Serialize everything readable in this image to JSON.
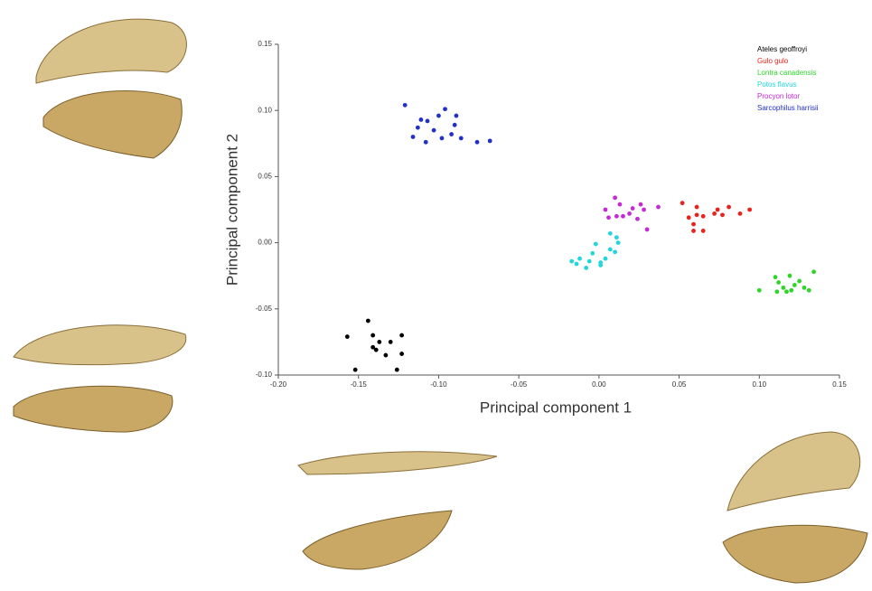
{
  "chart_data": {
    "type": "scatter",
    "x_label": "Principal component 1",
    "y_label": "Principal component 2",
    "xlim": [
      -0.2,
      0.15
    ],
    "ylim": [
      -0.1,
      0.15
    ],
    "xticks": [
      {
        "value": -0.2,
        "label": "-0.20"
      },
      {
        "value": -0.15,
        "label": "-0.15"
      },
      {
        "value": -0.1,
        "label": "-0.10"
      },
      {
        "value": -0.05,
        "label": "-0.05"
      },
      {
        "value": 0,
        "label": "0.00"
      },
      {
        "value": 0.05,
        "label": "0.05"
      },
      {
        "value": 0.1,
        "label": "0.10"
      },
      {
        "value": 0.15,
        "label": "0.15"
      }
    ],
    "yticks": [
      {
        "value": -0.1,
        "label": "-0.10"
      },
      {
        "value": -0.05,
        "label": "-0.05"
      },
      {
        "value": 0,
        "label": "0.00"
      },
      {
        "value": 0.05,
        "label": "0.05"
      },
      {
        "value": 0.1,
        "label": "0.10"
      },
      {
        "value": 0.15,
        "label": "0.15"
      }
    ],
    "legend": "top-right",
    "series": [
      {
        "name": "Ateles geoffroyi",
        "color": "#000000",
        "x": [
          -0.157,
          -0.144,
          -0.141,
          -0.141,
          -0.139,
          -0.137,
          -0.133,
          -0.13,
          -0.123,
          -0.123,
          -0.126,
          -0.152
        ],
        "y": [
          -0.071,
          -0.059,
          -0.07,
          -0.079,
          -0.081,
          -0.075,
          -0.085,
          -0.075,
          -0.07,
          -0.084,
          -0.096,
          -0.096
        ]
      },
      {
        "name": "Gulo gulo",
        "color": "#e8231e",
        "x": [
          0.052,
          0.061,
          0.061,
          0.056,
          0.059,
          0.065,
          0.072,
          0.074,
          0.081,
          0.077,
          0.088,
          0.094,
          0.065,
          0.059
        ],
        "y": [
          0.03,
          0.027,
          0.021,
          0.019,
          0.014,
          0.02,
          0.022,
          0.025,
          0.027,
          0.021,
          0.022,
          0.025,
          0.009,
          0.009
        ]
      },
      {
        "name": "Lontra canadensis",
        "color": "#2ed62a",
        "x": [
          0.1,
          0.11,
          0.112,
          0.115,
          0.117,
          0.12,
          0.122,
          0.125,
          0.128,
          0.131,
          0.134,
          0.111,
          0.119
        ],
        "y": [
          -0.036,
          -0.026,
          -0.03,
          -0.034,
          -0.037,
          -0.036,
          -0.032,
          -0.029,
          -0.034,
          -0.036,
          -0.022,
          -0.037,
          -0.025
        ]
      },
      {
        "name": "Potos flavus",
        "color": "#22d6de",
        "x": [
          -0.017,
          -0.014,
          -0.012,
          -0.008,
          -0.006,
          -0.004,
          -0.002,
          0.001,
          0.004,
          0.007,
          0.01,
          0.011,
          0.007,
          0.012,
          0.001
        ],
        "y": [
          -0.014,
          -0.016,
          -0.012,
          -0.019,
          -0.014,
          -0.008,
          -0.001,
          -0.017,
          -0.012,
          -0.005,
          -0.007,
          0.004,
          0.007,
          0.0,
          -0.015
        ]
      },
      {
        "name": "Procyon lotor",
        "color": "#c629d6",
        "x": [
          0.004,
          0.006,
          0.01,
          0.013,
          0.011,
          0.019,
          0.021,
          0.024,
          0.028,
          0.026,
          0.03,
          0.037,
          0.015
        ],
        "y": [
          0.025,
          0.019,
          0.034,
          0.029,
          0.02,
          0.022,
          0.026,
          0.018,
          0.025,
          0.029,
          0.01,
          0.027,
          0.02
        ]
      },
      {
        "name": "Sarcophilus harrisii",
        "color": "#2030c8",
        "x": [
          -0.121,
          -0.113,
          -0.111,
          -0.107,
          -0.1,
          -0.096,
          -0.103,
          -0.108,
          -0.116,
          -0.092,
          -0.089,
          -0.086,
          -0.076,
          -0.068,
          -0.09,
          -0.098
        ],
        "y": [
          0.104,
          0.087,
          0.093,
          0.092,
          0.096,
          0.101,
          0.085,
          0.076,
          0.08,
          0.082,
          0.096,
          0.079,
          0.076,
          0.077,
          0.089,
          0.079
        ]
      }
    ]
  }
}
